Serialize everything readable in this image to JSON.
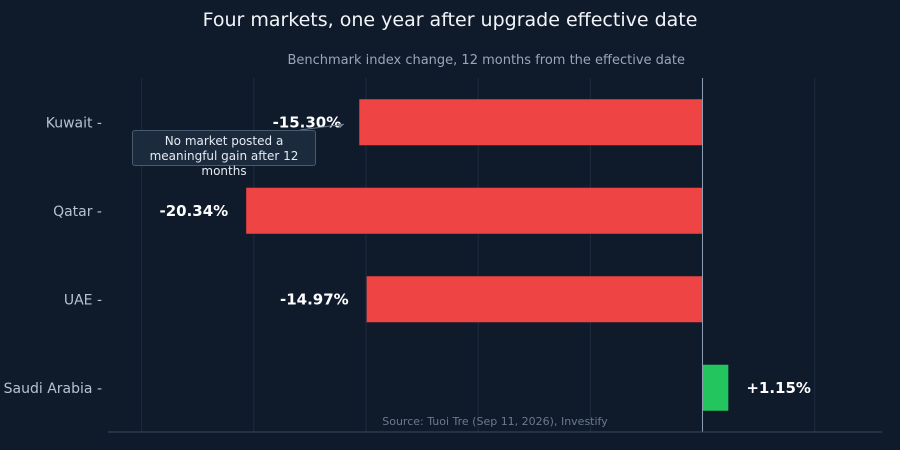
{
  "chart_data": {
    "type": "bar",
    "orientation": "horizontal",
    "title": "Four markets, one year after upgrade effective date",
    "subtitle": "Benchmark index change, 12 months from the effective date",
    "source": "Source: Tuoi Tre (Sep 11, 2026), Investify",
    "categories": [
      "Kuwait",
      "Qatar",
      "UAE",
      "Saudi Arabia"
    ],
    "values": [
      -15.3,
      -20.34,
      -14.97,
      1.15
    ],
    "value_labels": [
      "-15.30%",
      "-20.34%",
      "-14.97%",
      "+1.15%"
    ],
    "colors": {
      "negative": "#ef4444",
      "positive": "#22c55e",
      "background": "#0f1a2b"
    },
    "xlim": [
      -26.5,
      8
    ],
    "grid": true,
    "annotation": {
      "text": "No market posted a meaningful gain after 12 months",
      "target": "Kuwait"
    }
  }
}
